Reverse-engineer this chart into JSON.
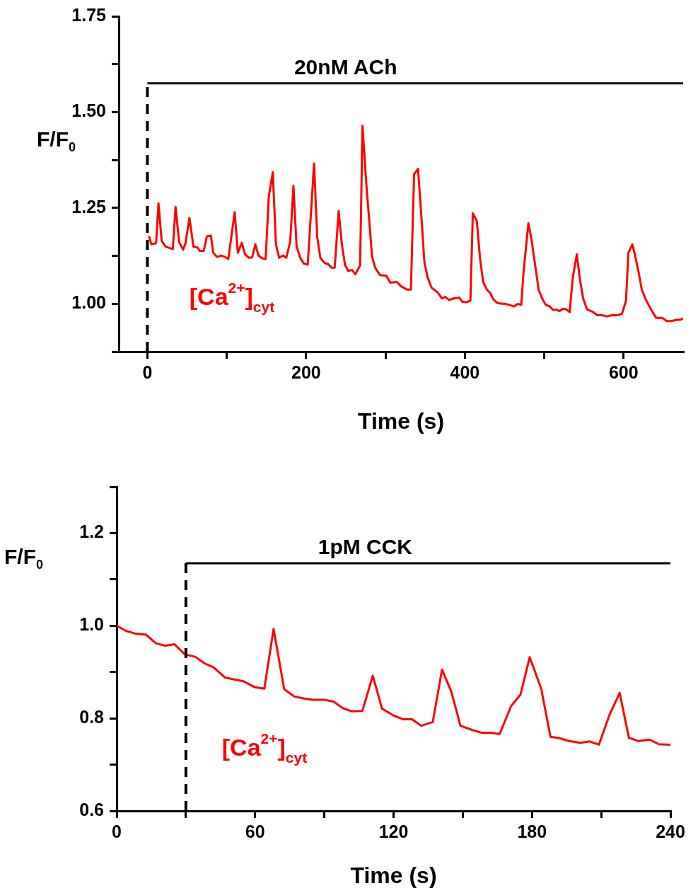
{
  "chart_data": [
    {
      "type": "line",
      "xlabel": "Time (s)",
      "ylabel": "F/F$_{0}$",
      "xlim": [
        -36,
        675
      ],
      "ylim": [
        0.875,
        1.75
      ],
      "xticks": [
        0,
        {
          "value": 100,
          "label": null
        },
        200,
        {
          "value": 300,
          "label": null
        },
        400,
        {
          "value": 500,
          "label": null
        },
        600
      ],
      "yticks": [
        {
          "value": 0.875,
          "label": null
        },
        {
          "value": 1,
          "label": "1.00"
        },
        {
          "value": 1.125,
          "label": null
        },
        1.25,
        {
          "value": 1.375,
          "label": null
        },
        {
          "value": 1.5,
          "label": "1.50"
        },
        {
          "value": 1.625,
          "label": null
        },
        1.75
      ],
      "ref_lines": [
        {
          "axis": "x",
          "value": 0,
          "color": "#000000",
          "line_style": "dashed"
        },
        {
          "axis": "y",
          "value": 1.575,
          "label": "20nM ACh",
          "color": "#000000"
        }
      ],
      "annotations": [
        "[Ca$^{2+}$]$_{cyt}$"
      ],
      "series": [
        {
          "color": "#ff0000",
          "x": [
            2,
            5,
            11,
            14,
            18,
            23,
            32,
            35.5,
            40,
            45,
            48,
            53,
            58,
            63,
            66,
            71,
            75,
            80,
            83,
            88,
            93,
            98,
            102,
            110,
            114,
            119,
            123,
            128,
            132,
            136,
            140,
            145,
            149,
            153,
            158,
            162,
            166,
            171,
            175,
            180,
            184,
            188,
            193,
            197,
            202,
            210,
            214,
            218,
            223,
            228,
            232,
            236,
            241,
            245,
            249,
            253,
            258,
            262,
            268,
            271,
            276,
            281,
            283,
            287,
            293,
            301,
            306,
            314,
            320,
            327,
            332,
            336,
            341,
            346,
            349,
            353,
            358,
            366,
            371,
            375,
            380,
            386,
            393,
            397,
            402,
            407,
            410,
            415,
            419,
            423,
            428,
            432,
            436,
            441,
            447,
            450,
            456,
            462,
            467,
            471,
            474,
            480,
            484,
            489,
            493,
            498,
            502,
            507,
            511,
            515,
            519,
            524,
            528,
            532,
            536,
            541,
            545,
            549,
            554,
            561,
            567,
            573,
            579,
            585,
            592,
            598,
            603,
            606,
            611,
            614,
            619,
            623,
            628,
            634,
            641,
            649,
            654,
            660,
            667,
            671,
            675
          ],
          "values": [
            1.176,
            1.155,
            1.158,
            1.262,
            1.164,
            1.149,
            1.143,
            1.253,
            1.161,
            1.141,
            1.158,
            1.224,
            1.149,
            1.147,
            1.138,
            1.138,
            1.176,
            1.178,
            1.133,
            1.122,
            1.126,
            1.122,
            1.117,
            1.239,
            1.133,
            1.159,
            1.129,
            1.12,
            1.121,
            1.155,
            1.126,
            1.118,
            1.117,
            1.28,
            1.343,
            1.155,
            1.12,
            1.126,
            1.12,
            1.163,
            1.308,
            1.149,
            1.118,
            1.105,
            1.102,
            1.366,
            1.173,
            1.119,
            1.107,
            1.103,
            1.094,
            1.094,
            1.242,
            1.155,
            1.101,
            1.086,
            1.088,
            1.077,
            1.1,
            1.464,
            1.308,
            1.179,
            1.124,
            1.094,
            1.075,
            1.073,
            1.055,
            1.057,
            1.045,
            1.037,
            1.037,
            1.338,
            1.352,
            1.204,
            1.109,
            1.069,
            1.042,
            1.029,
            1.014,
            1.018,
            1.01,
            1.014,
            1.016,
            1.005,
            1.004,
            1.008,
            1.236,
            1.217,
            1.121,
            1.057,
            1.036,
            1.028,
            1.011,
            1.002,
            1,
            1,
            0.997,
            0.993,
            1,
            0.997,
            1.085,
            1.21,
            1.167,
            1.094,
            1.036,
            1.011,
            0.997,
            0.993,
            0.984,
            0.985,
            0.981,
            0.987,
            0.985,
            0.978,
            1.069,
            1.129,
            1.063,
            1.014,
            0.985,
            0.979,
            0.97,
            0.97,
            0.967,
            0.97,
            0.97,
            0.974,
            1.008,
            1.133,
            1.155,
            1.13,
            1.081,
            1.036,
            1.011,
            0.987,
            0.963,
            0.963,
            0.955,
            0.955,
            0.958,
            0.958,
            0.962
          ]
        }
      ]
    },
    {
      "type": "line",
      "xlabel": "Time (s)",
      "ylabel": "F/F$_{0}$",
      "xlim": [
        0,
        240
      ],
      "ylim": [
        0.6,
        1.3
      ],
      "xticks": [
        0,
        {
          "value": 30,
          "label": null
        },
        60,
        {
          "value": 90,
          "label": null
        },
        120,
        {
          "value": 150,
          "label": null
        },
        180,
        {
          "value": 210,
          "label": null
        },
        240
      ],
      "yticks": [
        0.6,
        {
          "value": 0.7,
          "label": null
        },
        0.8,
        {
          "value": 0.9,
          "label": null
        },
        {
          "value": 1,
          "label": "1.0"
        },
        {
          "value": 1.1,
          "label": null
        },
        1.2,
        {
          "value": 1.3,
          "label": null
        }
      ],
      "ref_lines": [
        {
          "axis": "x",
          "value": 30,
          "color": "#000000",
          "line_style": "dashed"
        },
        {
          "axis": "y",
          "value": 1.135,
          "label": "1pM CCK",
          "color": "#000000"
        }
      ],
      "annotations": [
        "[Ca$^{2+}$]$_{cyt}$"
      ],
      "series": [
        {
          "color": "#ff0000",
          "x": [
            0,
            4,
            8,
            12.6,
            17,
            21,
            25,
            29.6,
            34,
            38,
            42,
            47,
            51,
            55,
            60,
            64,
            68,
            72.6,
            77,
            81,
            85,
            90,
            94,
            98,
            102,
            106.5,
            111,
            115,
            120,
            124,
            128,
            132,
            137,
            141,
            145,
            149,
            154,
            158,
            162,
            166,
            171,
            175,
            179,
            184,
            188,
            192,
            196,
            201,
            205,
            209,
            213.5,
            218,
            222,
            226,
            231,
            235,
            240
          ],
          "values": [
            1,
            0.989,
            0.983,
            0.981,
            0.962,
            0.957,
            0.96,
            0.938,
            0.933,
            0.919,
            0.91,
            0.888,
            0.884,
            0.88,
            0.867,
            0.864,
            0.993,
            0.863,
            0.847,
            0.843,
            0.84,
            0.84,
            0.836,
            0.822,
            0.815,
            0.816,
            0.892,
            0.821,
            0.806,
            0.798,
            0.798,
            0.784,
            0.792,
            0.905,
            0.858,
            0.784,
            0.775,
            0.769,
            0.769,
            0.766,
            0.827,
            0.851,
            0.932,
            0.864,
            0.76,
            0.757,
            0.751,
            0.747,
            0.75,
            0.743,
            0.806,
            0.855,
            0.758,
            0.751,
            0.754,
            0.744,
            0.743
          ]
        }
      ]
    }
  ]
}
